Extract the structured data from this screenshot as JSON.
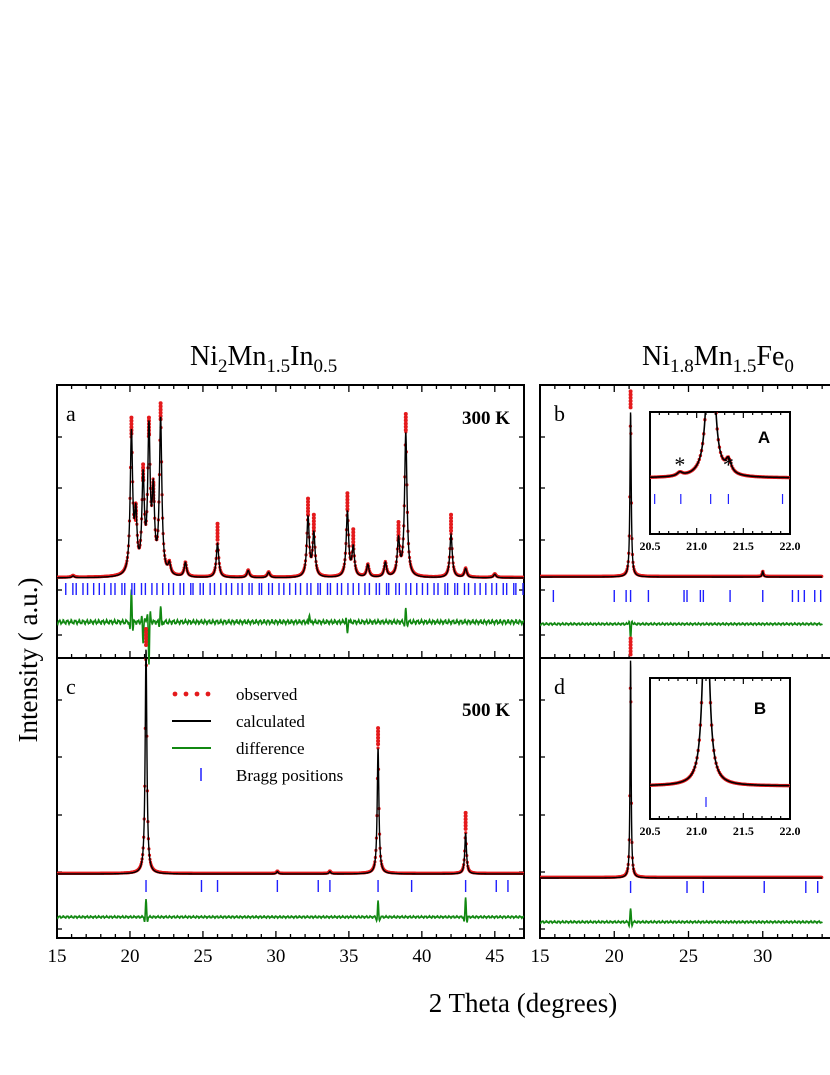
{
  "chart_data": {
    "type": "line",
    "ylabel": "Intensity ( a.u.)",
    "xlabel": "2 Theta (degrees)",
    "legend": {
      "placement": "panel-c-top",
      "entries": [
        {
          "label": "observed",
          "style": "red-dots",
          "color": "#e41a1c"
        },
        {
          "label": "calculated",
          "style": "black-line",
          "color": "#000000"
        },
        {
          "label": "difference",
          "style": "green-line",
          "color": "#118811"
        },
        {
          "label": "Bragg positions",
          "style": "blue-tick",
          "color": "#1f1fff"
        }
      ]
    },
    "columns": [
      {
        "id": "left",
        "title_base": "Ni",
        "title_parts": [
          [
            "Ni",
            ""
          ],
          [
            "2",
            "sub"
          ],
          [
            "Mn",
            ""
          ],
          [
            "1.5",
            "sub"
          ],
          [
            "In",
            ""
          ],
          [
            "0.5",
            "sub"
          ]
        ]
      },
      {
        "id": "right",
        "title_parts": [
          [
            "Ni",
            ""
          ],
          [
            "1.8",
            "sub"
          ],
          [
            "Mn",
            ""
          ],
          [
            "1.5",
            "sub"
          ],
          [
            "Fe",
            ""
          ],
          [
            "0",
            "sub"
          ]
        ]
      }
    ],
    "xlim_left": [
      15,
      47
    ],
    "xlim_right": [
      15,
      34
    ],
    "xticks_left": [
      "15",
      "20",
      "25",
      "30",
      "35",
      "40",
      "45"
    ],
    "xticks_right": [
      "15",
      "20",
      "25",
      "30",
      "3"
    ],
    "panels": [
      {
        "id": "a",
        "label": "a",
        "temperature": "300 K",
        "peaks": [
          {
            "x": 16.1,
            "y": 0.01
          },
          {
            "x": 20.1,
            "y": 0.78
          },
          {
            "x": 20.4,
            "y": 0.3
          },
          {
            "x": 20.9,
            "y": 0.52
          },
          {
            "x": 21.3,
            "y": 0.78
          },
          {
            "x": 21.6,
            "y": 0.42
          },
          {
            "x": 22.1,
            "y": 0.86
          },
          {
            "x": 22.7,
            "y": 0.06
          },
          {
            "x": 23.8,
            "y": 0.08
          },
          {
            "x": 26.0,
            "y": 0.19
          },
          {
            "x": 28.1,
            "y": 0.04
          },
          {
            "x": 29.5,
            "y": 0.03
          },
          {
            "x": 32.2,
            "y": 0.33
          },
          {
            "x": 32.6,
            "y": 0.24
          },
          {
            "x": 34.9,
            "y": 0.36
          },
          {
            "x": 35.3,
            "y": 0.16
          },
          {
            "x": 36.3,
            "y": 0.07
          },
          {
            "x": 37.5,
            "y": 0.08
          },
          {
            "x": 38.4,
            "y": 0.2
          },
          {
            "x": 38.9,
            "y": 0.8
          },
          {
            "x": 42.0,
            "y": 0.24
          },
          {
            "x": 43.0,
            "y": 0.05
          },
          {
            "x": 45.0,
            "y": 0.02
          }
        ],
        "diff": [
          {
            "x": 20.1,
            "y": 0.8
          },
          {
            "x": 20.9,
            "y": -0.5
          },
          {
            "x": 21.3,
            "y": -1.0
          },
          {
            "x": 22.1,
            "y": 0.4
          },
          {
            "x": 32.3,
            "y": 0.2
          },
          {
            "x": 34.9,
            "y": -0.3
          },
          {
            "x": 38.9,
            "y": 0.3
          }
        ],
        "bragg_dense": true
      },
      {
        "id": "b",
        "label": "b",
        "peaks": [
          {
            "x": 21.1,
            "y": 0.92
          },
          {
            "x": 30.0,
            "y": 0.03
          }
        ],
        "diff": [
          {
            "x": 21.1,
            "y": -0.7
          }
        ],
        "bragg": [
          15.9,
          20.0,
          20.8,
          21.1,
          22.3,
          24.7,
          24.9,
          25.8,
          26.0,
          27.8,
          30.0,
          32.0,
          32.4,
          32.8,
          33.5,
          33.9
        ],
        "inset": {
          "label": "A",
          "xlim": [
            20.5,
            22.0
          ],
          "xticks": [
            "20.5",
            "21.0",
            "21.5",
            "22.0"
          ],
          "peaks": [
            {
              "x": 21.15,
              "y": 4.0
            },
            {
              "x": 20.82,
              "y": 0.06
            },
            {
              "x": 21.34,
              "y": 0.22
            }
          ],
          "markers": [
            {
              "x": 20.82,
              "text": "*"
            },
            {
              "x": 21.34,
              "text": "*"
            }
          ],
          "bragg": [
            20.55,
            20.83,
            21.15,
            21.34,
            21.92
          ]
        }
      },
      {
        "id": "c",
        "label": "c",
        "temperature": "500 K",
        "peaks": [
          {
            "x": 21.1,
            "y": 0.93
          },
          {
            "x": 30.1,
            "y": 0.01
          },
          {
            "x": 33.7,
            "y": 0.01
          },
          {
            "x": 37.0,
            "y": 0.52
          },
          {
            "x": 43.0,
            "y": 0.17
          }
        ],
        "diff": [
          {
            "x": 21.1,
            "y": 0.8
          },
          {
            "x": 37.0,
            "y": 0.7
          },
          {
            "x": 43.0,
            "y": 0.9
          }
        ],
        "bragg": [
          21.1,
          24.9,
          26.0,
          30.1,
          32.9,
          33.7,
          37.0,
          39.3,
          43.0,
          45.1,
          45.9
        ]
      },
      {
        "id": "d",
        "label": "d",
        "peaks": [
          {
            "x": 21.1,
            "y": 0.93
          }
        ],
        "diff": [
          {
            "x": 21.1,
            "y": 0.6
          }
        ],
        "bragg": [
          21.1,
          24.9,
          26.0,
          30.1,
          32.9,
          33.7
        ],
        "inset": {
          "label": "B",
          "xlim": [
            20.5,
            22.0
          ],
          "xticks": [
            "20.5",
            "21.0",
            "21.5",
            "22.0"
          ],
          "peaks": [
            {
              "x": 21.1,
              "y": 4.0
            }
          ],
          "bragg": [
            21.1
          ]
        }
      }
    ]
  }
}
